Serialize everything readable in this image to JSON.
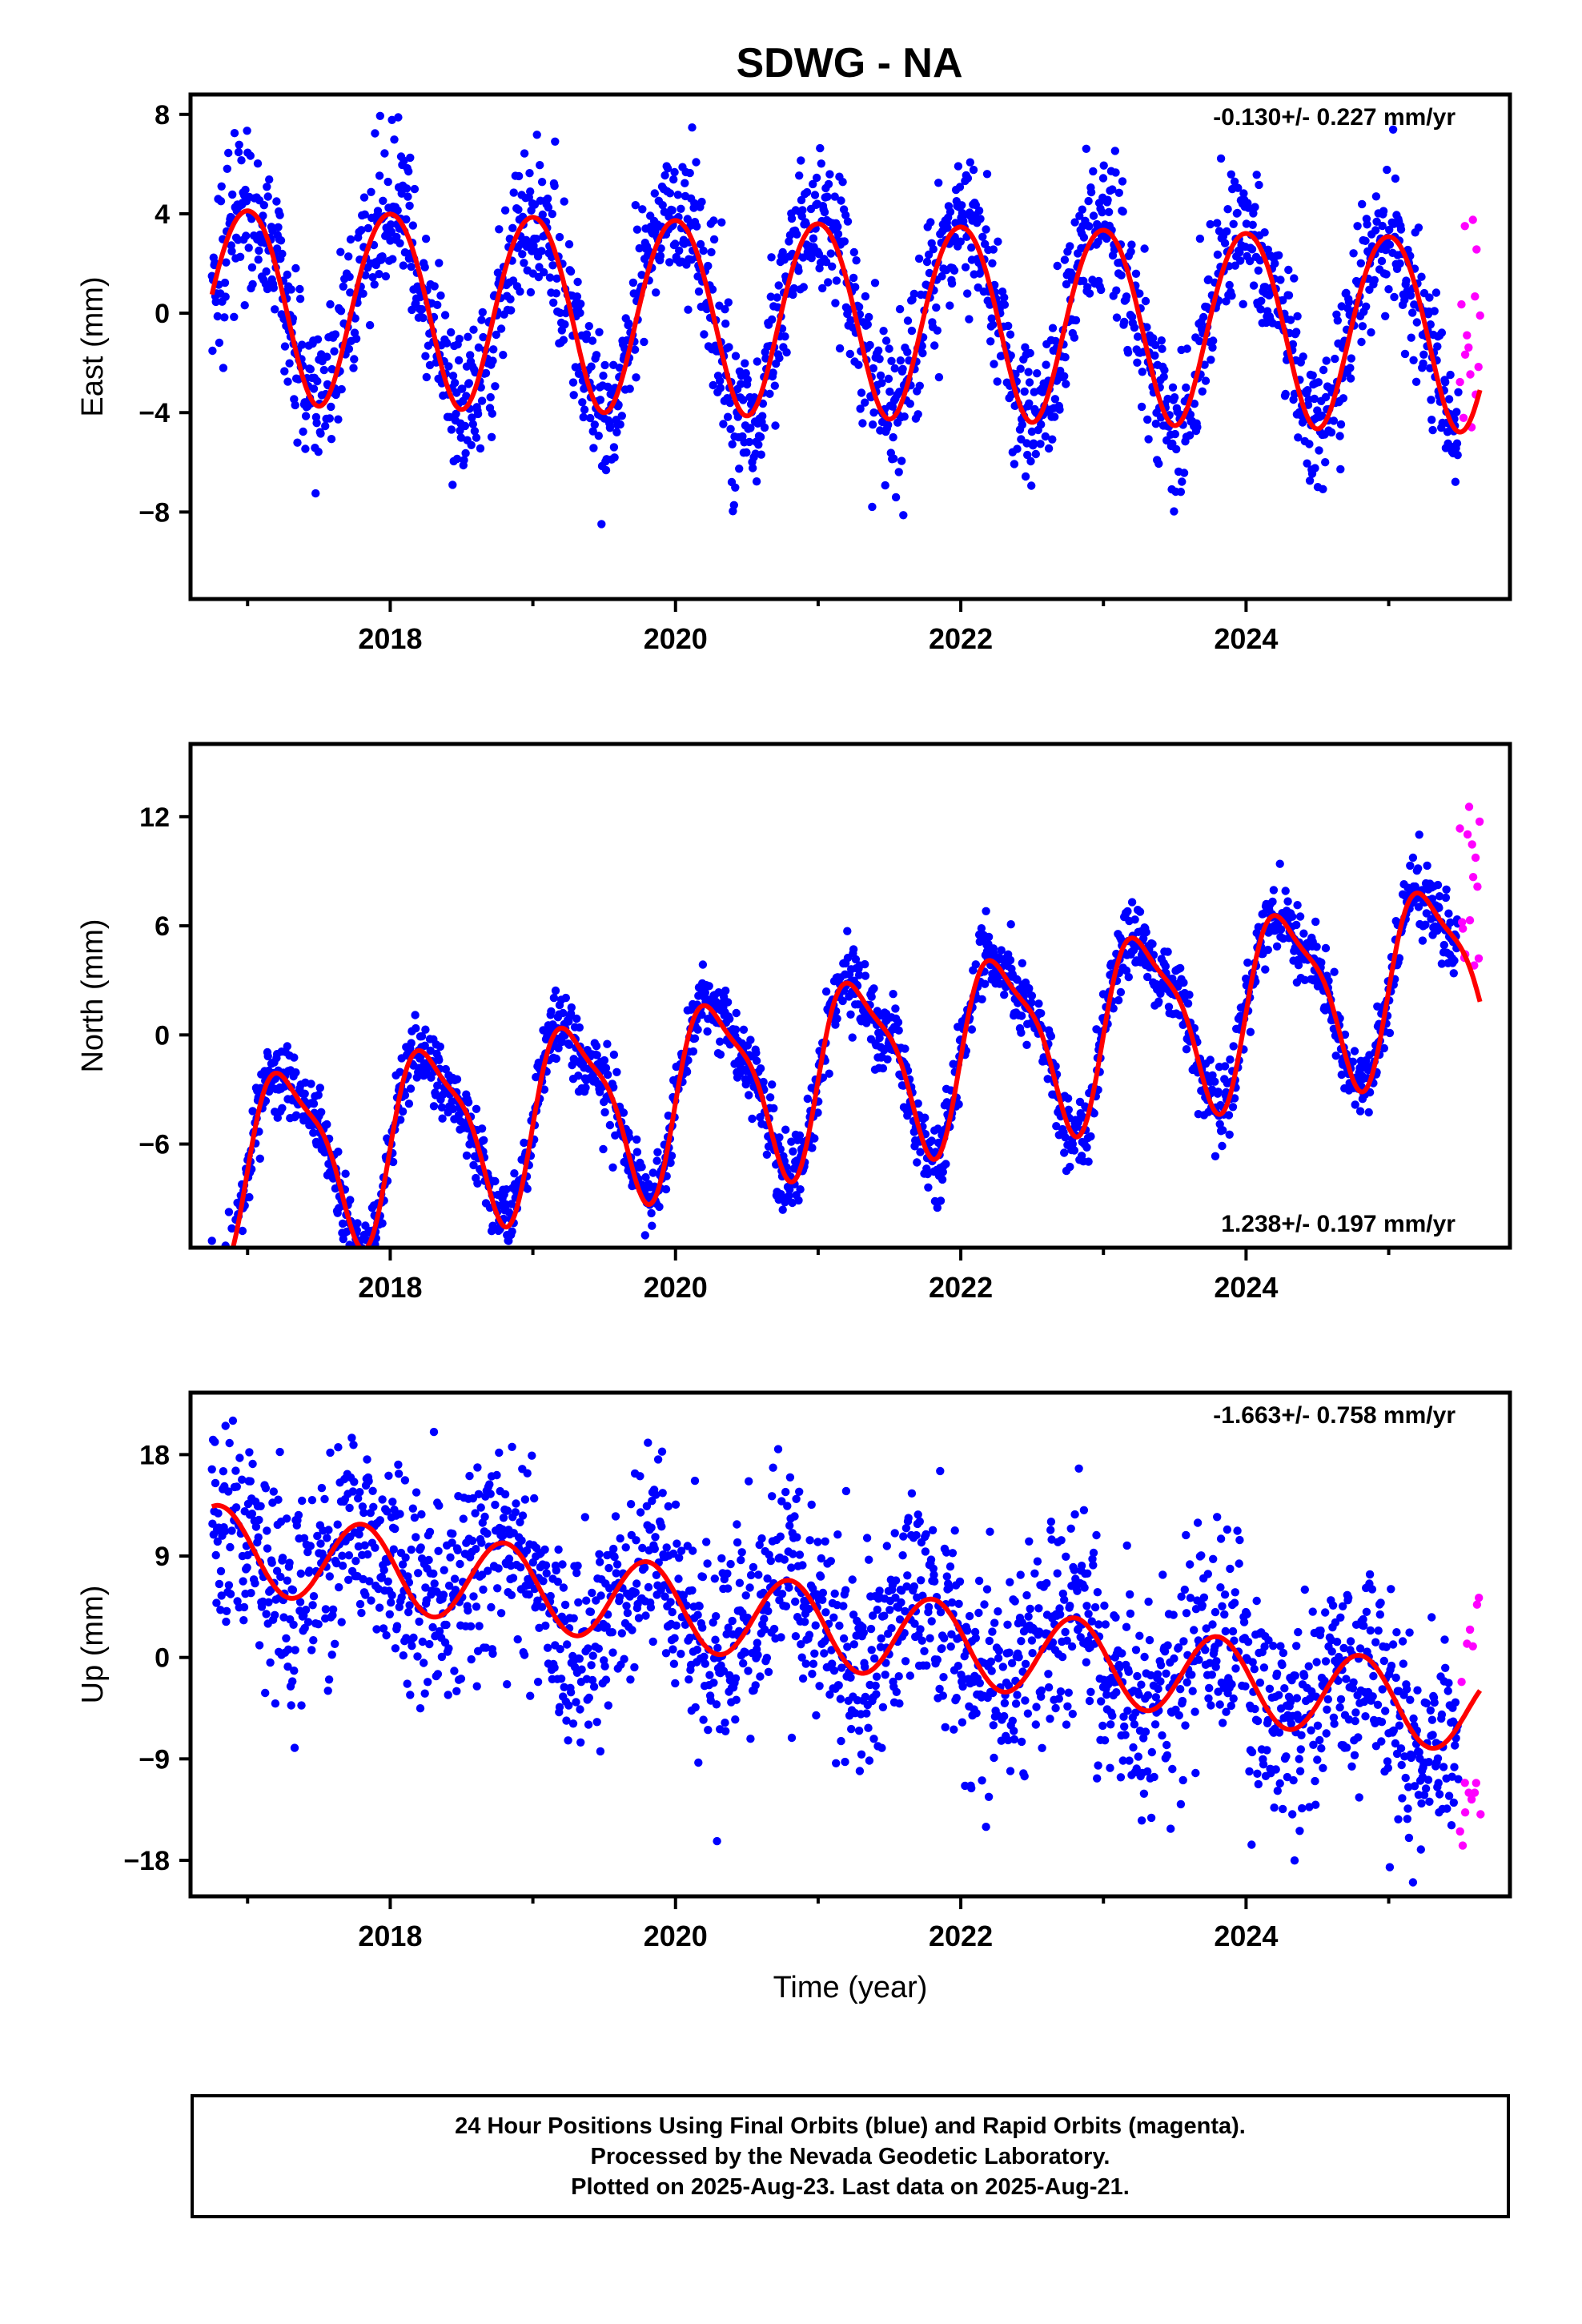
{
  "title": "SDWG - NA",
  "footer": {
    "lines": [
      "24 Hour Positions Using Final Orbits (blue) and Rapid Orbits (magenta).",
      "Processed by the Nevada Geodetic Laboratory.",
      "Plotted on 2025-Aug-23. Last data on 2025-Aug-21."
    ]
  },
  "colors": {
    "final": "#0000ff",
    "rapid": "#ff00ff",
    "model": "#ff0000"
  },
  "chart_data": [
    {
      "type": "scatter",
      "component": "East",
      "ylabel": "East (mm)",
      "xlabel": "",
      "rate_label": "-0.130+/- 0.227 mm/yr",
      "rate_position": "top-right",
      "xlim": [
        2016.6,
        2025.85
      ],
      "ylim": [
        -11.5,
        8.8
      ],
      "yticks": [
        -8,
        -4,
        0,
        4,
        8
      ],
      "ytick_labels": [
        "−8",
        "−4",
        "0",
        "4",
        "8"
      ],
      "xticks": [
        2018,
        2020,
        2022,
        2024
      ],
      "xtick_labels": [
        "2018",
        "2020",
        "2022",
        "2024"
      ],
      "grid": false,
      "model": {
        "trend": -0.13,
        "offset": -0.05,
        "annual_amp": 3.9,
        "annual_phase": 0.0,
        "semi_amp": 0.25,
        "semi_phase": 0.25,
        "noise_sd": 1.55,
        "wobble": 0.6
      },
      "series": [
        {
          "name": "Final Orbits",
          "x_range": [
            2016.75,
            2025.49
          ],
          "step_days": 1.45
        },
        {
          "name": "Rapid Orbits",
          "x_range": [
            2025.5,
            2025.64
          ],
          "count": 15,
          "y_range": [
            -4.8,
            4.3
          ]
        },
        {
          "name": "Model"
        }
      ]
    },
    {
      "type": "scatter",
      "component": "North",
      "ylabel": "North (mm)",
      "xlabel": "",
      "rate_label": "1.238+/- 0.197 mm/yr",
      "rate_position": "bottom-right",
      "xlim": [
        2016.6,
        2025.85
      ],
      "ylim": [
        -11.7,
        16.0
      ],
      "yticks": [
        -6,
        0,
        6,
        12
      ],
      "ytick_labels": [
        "−6",
        "0",
        "6",
        "12"
      ],
      "xticks": [
        2018,
        2020,
        2022,
        2024
      ],
      "xtick_labels": [
        "2018",
        "2020",
        "2022",
        "2024"
      ],
      "grid": false,
      "model": {
        "trend": 1.238,
        "offset": -2.0,
        "annual_amp": 4.8,
        "annual_phase": 0.28,
        "semi_amp": 1.3,
        "semi_phase": 0.1,
        "noise_sd": 1.0,
        "wobble": 0.5
      },
      "series": [
        {
          "name": "Final Orbits",
          "x_range": [
            2016.75,
            2025.49
          ],
          "step_days": 1.45
        },
        {
          "name": "Rapid Orbits",
          "x_range": [
            2025.5,
            2025.64
          ],
          "count": 15,
          "y_range": [
            3.8,
            12.7
          ]
        },
        {
          "name": "Model"
        }
      ]
    },
    {
      "type": "scatter",
      "component": "Up",
      "ylabel": "Up (mm)",
      "xlabel": "Time (year)",
      "rate_label": "-1.663+/- 0.758 mm/yr",
      "rate_position": "top-right",
      "xlim": [
        2016.6,
        2025.85
      ],
      "ylim": [
        -21.2,
        23.5
      ],
      "yticks": [
        -18,
        -9,
        0,
        9,
        18
      ],
      "ytick_labels": [
        "−18",
        "−9",
        "0",
        "9",
        "18"
      ],
      "xticks": [
        2018,
        2020,
        2022,
        2024
      ],
      "xtick_labels": [
        "2018",
        "2020",
        "2022",
        "2024"
      ],
      "grid": false,
      "model": {
        "trend": -1.663,
        "offset": 2.8,
        "annual_amp": 3.7,
        "annual_phase": -0.2,
        "semi_amp": 0.0,
        "semi_phase": 0.0,
        "noise_sd": 4.6,
        "wobble": 1.5
      },
      "series": [
        {
          "name": "Final Orbits",
          "x_range": [
            2016.75,
            2025.49
          ],
          "step_days": 1.45
        },
        {
          "name": "Rapid Orbits",
          "x_range": [
            2025.5,
            2025.64
          ],
          "count": 15,
          "y_range": [
            -17,
            5.5
          ]
        },
        {
          "name": "Model"
        }
      ]
    }
  ]
}
